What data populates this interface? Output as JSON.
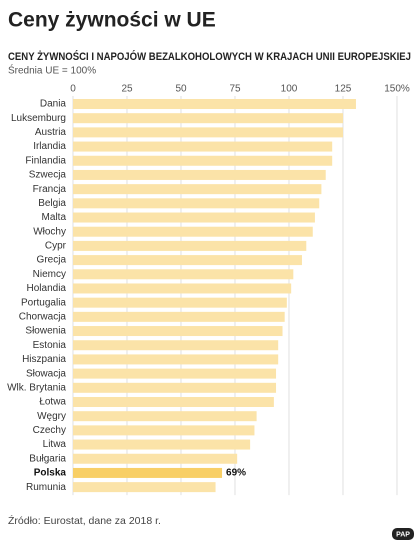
{
  "chart_data": {
    "type": "hbar",
    "title": "Ceny żywności w UE",
    "subtitle": "CENY ŻYWNOŚCI I NAPOJÓW BEZALKOHOLOWYCH W KRAJACH UNII EUROPEJSKIEJ",
    "note": "Średnia UE = 100%",
    "source": "Źródło: Eurostat, dane za 2018 r.",
    "logo": "PAP",
    "categories": [
      "Dania",
      "Luksemburg",
      "Austria",
      "Irlandia",
      "Finlandia",
      "Szwecja",
      "Francja",
      "Belgia",
      "Malta",
      "Włochy",
      "Cypr",
      "Grecja",
      "Niemcy",
      "Holandia",
      "Portugalia",
      "Chorwacja",
      "Słowenia",
      "Estonia",
      "Hiszpania",
      "Słowacja",
      "Wlk. Brytania",
      "Łotwa",
      "Węgry",
      "Czechy",
      "Litwa",
      "Bułgaria",
      "Polska",
      "Rumunia"
    ],
    "values": [
      131,
      125,
      125,
      120,
      120,
      117,
      115,
      114,
      112,
      111,
      108,
      106,
      102,
      101,
      99,
      98,
      97,
      95,
      95,
      94,
      94,
      93,
      85,
      84,
      82,
      76,
      69,
      66
    ],
    "value_labels": [
      null,
      null,
      null,
      null,
      null,
      null,
      null,
      null,
      null,
      null,
      null,
      null,
      null,
      null,
      null,
      null,
      null,
      null,
      null,
      null,
      null,
      null,
      null,
      null,
      null,
      null,
      "69%",
      null
    ],
    "colors": [
      "#fbe3a8",
      "#fbe3a8",
      "#fbe3a8",
      "#fbe3a8",
      "#fbe3a8",
      "#fbe3a8",
      "#fbe3a8",
      "#fbe3a8",
      "#fbe3a8",
      "#fbe3a8",
      "#fbe3a8",
      "#fbe3a8",
      "#fbe3a8",
      "#fbe3a8",
      "#fbe3a8",
      "#fbe3a8",
      "#fbe3a8",
      "#fbe3a8",
      "#fbe3a8",
      "#fbe3a8",
      "#fbe3a8",
      "#fbe3a8",
      "#fbe3a8",
      "#fbe3a8",
      "#fbe3a8",
      "#fbe3a8",
      "#f8cf66",
      "#fbe3a8"
    ],
    "xlim": [
      0,
      150
    ],
    "xticks": [
      0,
      25,
      50,
      75,
      100,
      125,
      {
        "value": 150,
        "label": "150%"
      }
    ],
    "grid": true
  }
}
